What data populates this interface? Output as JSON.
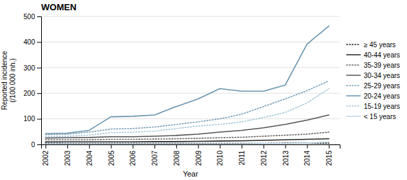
{
  "chart_data": {
    "type": "line",
    "title": "WOMEN",
    "xlabel": "Year",
    "ylabel": "Reported incidence\n(/100 000 inh.)",
    "x": [
      2002,
      2003,
      2004,
      2005,
      2006,
      2007,
      2008,
      2009,
      2010,
      2011,
      2012,
      2013,
      2014,
      2015
    ],
    "series": [
      {
        "name": "≥ 45 years",
        "color": "#2a2a2a",
        "line_style": "dotted",
        "values": [
          5,
          4,
          4,
          4,
          4,
          4,
          4,
          4,
          4,
          4,
          4,
          5,
          5,
          5
        ]
      },
      {
        "name": "40-44 years",
        "color": "#2a2a2a",
        "line_style": "solid",
        "values": [
          10,
          10,
          10,
          10,
          10,
          11,
          11,
          12,
          13,
          14,
          16,
          18,
          20,
          22
        ]
      },
      {
        "name": "35-39 years",
        "color": "#666666",
        "line_style": "dotted",
        "values": [
          18,
          18,
          18,
          20,
          20,
          21,
          22,
          24,
          26,
          28,
          32,
          36,
          40,
          48
        ]
      },
      {
        "name": "30-34 years",
        "color": "#555555",
        "line_style": "solid",
        "values": [
          25,
          26,
          27,
          30,
          30,
          32,
          35,
          40,
          48,
          55,
          65,
          78,
          95,
          115
        ]
      },
      {
        "name": "25-29 years",
        "color": "#7b9fb8",
        "line_style": "dotted",
        "values": [
          38,
          40,
          48,
          60,
          62,
          68,
          78,
          88,
          100,
          118,
          148,
          178,
          210,
          248
        ]
      },
      {
        "name": "20-24 years",
        "color": "#6895b0",
        "line_style": "solid",
        "values": [
          42,
          44,
          55,
          108,
          110,
          115,
          148,
          178,
          218,
          208,
          208,
          232,
          392,
          462
        ]
      },
      {
        "name": "15-19 years",
        "color": "#a8c8d8",
        "line_style": "dotted",
        "values": [
          30,
          32,
          36,
          46,
          48,
          52,
          62,
          72,
          78,
          88,
          105,
          125,
          162,
          218
        ]
      },
      {
        "name": "< 15 years",
        "color": "#c0d8e8",
        "line_style": "solid",
        "values": [
          2,
          2,
          2,
          2,
          2,
          2,
          2,
          2,
          2,
          2,
          3,
          3,
          5,
          10
        ]
      }
    ],
    "xlim": [
      2001.8,
      2015.5
    ],
    "xticks": [
      2002,
      2003,
      2004,
      2005,
      2006,
      2007,
      2008,
      2009,
      2010,
      2011,
      2012,
      2013,
      2014,
      2015
    ],
    "ylim": [
      0,
      500
    ],
    "yticks": [
      0,
      100,
      200,
      300,
      400,
      500
    ],
    "grid": true,
    "legend": "right"
  }
}
